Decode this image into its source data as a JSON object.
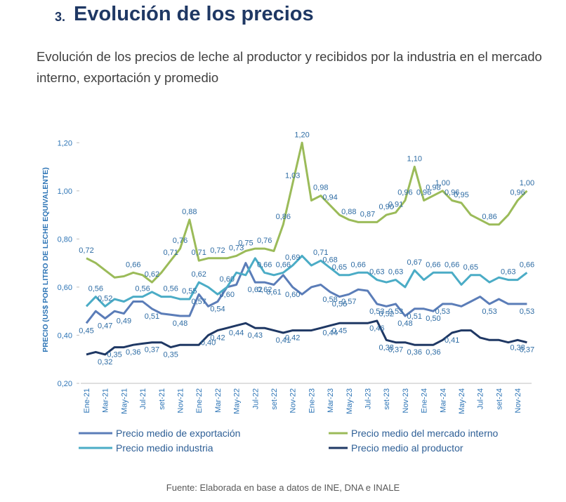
{
  "header": {
    "number": "3.",
    "title": "Evolución de los precios",
    "subtitle": "Evolución de los precios de leche al productor y recibidos por la industria en el mercado interno, exportación y promedio"
  },
  "footer": {
    "source": "Fuente: Elaborada en base a datos de INE, DNA e INALE"
  },
  "chart_data": {
    "type": "line",
    "y_label": "PRECIO (US$ POR LITRO DE LECHE EQUIVALENTE)",
    "categories": [
      "Ene-21",
      null,
      "Mar-21",
      null,
      "May-21",
      null,
      "Jul-21",
      null,
      "set-21",
      null,
      "Nov-21",
      null,
      "Ene-22",
      null,
      "Mar-22",
      null,
      "May-22",
      null,
      "Jul-22",
      null,
      "set-22",
      null,
      "Nov-22",
      null,
      "Ene-23",
      null,
      "Mar-23",
      null,
      "May-23",
      null,
      "Jul-23",
      null,
      "set-23",
      null,
      "Nov-23",
      null,
      "Ene-24",
      null,
      "Mar-24",
      null,
      "May-24",
      null,
      "Jul-24",
      null,
      "set-24",
      null,
      "Nov-24",
      null
    ],
    "ylim": [
      0.2,
      1.3
    ],
    "yticks": [
      {
        "value": 0.2,
        "label": "0,20"
      },
      {
        "value": 0.4,
        "label": "0,40"
      },
      {
        "value": 0.6,
        "label": "0,60"
      },
      {
        "value": 0.8,
        "label": "0,80"
      },
      {
        "value": 1.0,
        "label": "1,00"
      },
      {
        "value": 1.2,
        "label": "1,20"
      }
    ],
    "grid": false,
    "series": [
      {
        "name": "Precio medio de exportación",
        "color": "#5b7db8",
        "values": [
          0.45,
          0.5,
          0.47,
          0.5,
          0.49,
          0.54,
          0.54,
          0.51,
          0.49,
          0.485,
          0.48,
          0.48,
          0.57,
          0.52,
          0.54,
          0.6,
          0.61,
          0.7,
          0.62,
          0.62,
          0.61,
          0.65,
          0.6,
          0.57,
          0.6,
          0.61,
          0.58,
          0.56,
          0.57,
          0.59,
          0.585,
          0.53,
          0.52,
          0.53,
          0.48,
          0.51,
          0.51,
          0.5,
          0.53,
          0.53,
          0.52,
          0.54,
          0.56,
          0.53,
          0.55,
          0.53,
          0.53,
          0.53
        ],
        "value_labels": [
          "0,45",
          null,
          "0,47",
          null,
          "0,49",
          null,
          null,
          "0,51",
          null,
          null,
          "0,48",
          null,
          "0,57",
          null,
          "0,54",
          "0,60",
          null,
          null,
          "0,62",
          "0,62",
          "0,61",
          null,
          "0,60",
          null,
          null,
          null,
          "0,58",
          "0,56",
          "0,57",
          null,
          null,
          "0,53",
          "0,52",
          "0,53",
          "0,48",
          "0,51",
          null,
          "0,50",
          "0,53",
          null,
          null,
          null,
          null,
          "0,53",
          null,
          null,
          null,
          "0,53"
        ]
      },
      {
        "name": "Precio medio industria",
        "color": "#4bacc6",
        "values": [
          0.52,
          0.56,
          0.52,
          0.55,
          0.54,
          0.56,
          0.56,
          0.58,
          0.56,
          0.56,
          0.55,
          0.55,
          0.62,
          0.6,
          0.57,
          0.6,
          0.66,
          0.65,
          0.72,
          0.66,
          0.65,
          0.66,
          0.69,
          0.73,
          0.69,
          0.71,
          0.68,
          0.65,
          0.65,
          0.66,
          0.66,
          0.63,
          0.62,
          0.63,
          0.6,
          0.67,
          0.63,
          0.66,
          0.66,
          0.66,
          0.61,
          0.65,
          0.65,
          0.62,
          0.64,
          0.63,
          0.63,
          0.66
        ],
        "value_labels": [
          null,
          "0,56",
          "0,52",
          null,
          null,
          null,
          "0,56",
          null,
          null,
          "0,56",
          null,
          "0,55",
          "0,62",
          null,
          null,
          "0,60",
          null,
          null,
          null,
          "0,66",
          null,
          "0,66",
          "0,69",
          null,
          null,
          "0,71",
          "0,68",
          "0,65",
          null,
          "0,66",
          null,
          "0,63",
          null,
          "0,63",
          null,
          "0,67",
          null,
          "0,66",
          null,
          "0,66",
          null,
          "0,65",
          null,
          null,
          null,
          "0,63",
          null,
          "0,66"
        ]
      },
      {
        "name": "Precio medio del mercado interno",
        "color": "#9bbb59",
        "values": [
          0.72,
          0.7,
          0.67,
          0.64,
          0.645,
          0.66,
          0.65,
          0.62,
          0.66,
          0.71,
          0.76,
          0.88,
          0.71,
          0.72,
          0.72,
          0.72,
          0.73,
          0.75,
          0.76,
          0.76,
          0.75,
          0.86,
          1.03,
          1.2,
          0.96,
          0.98,
          0.94,
          0.9,
          0.88,
          0.87,
          0.87,
          0.87,
          0.9,
          0.91,
          0.96,
          1.1,
          0.96,
          0.98,
          1.0,
          0.96,
          0.95,
          0.9,
          0.88,
          0.86,
          0.86,
          0.9,
          0.96,
          1.0
        ],
        "value_labels": [
          "0,72",
          null,
          null,
          null,
          null,
          "0,66",
          null,
          "0,62",
          null,
          "0,71",
          "0,76",
          "0,88",
          "0,71",
          null,
          "0,72",
          null,
          "0,73",
          "0,75",
          null,
          "0,76",
          null,
          "0,86",
          "1,03",
          "1,20",
          null,
          "0,98",
          "0,94",
          null,
          "0,88",
          null,
          "0,87",
          null,
          "0,90",
          "0,91",
          "0,96",
          "1,10",
          "0,96",
          "0,98",
          "1,00",
          "0,96",
          "0,95",
          null,
          null,
          "0,86",
          null,
          null,
          "0,96",
          "1,00"
        ]
      },
      {
        "name": "Precio medio al productor",
        "color": "#1f3864",
        "values": [
          0.32,
          0.33,
          0.32,
          0.35,
          0.35,
          0.36,
          0.365,
          0.37,
          0.37,
          0.35,
          0.36,
          0.36,
          0.36,
          0.4,
          0.42,
          0.43,
          0.44,
          0.45,
          0.43,
          0.43,
          0.42,
          0.41,
          0.42,
          0.42,
          0.42,
          0.43,
          0.44,
          0.45,
          0.45,
          0.45,
          0.45,
          0.46,
          0.38,
          0.37,
          0.37,
          0.36,
          0.36,
          0.36,
          0.38,
          0.41,
          0.42,
          0.42,
          0.39,
          0.38,
          0.38,
          0.37,
          0.38,
          0.37
        ],
        "value_labels": [
          null,
          null,
          "0,32",
          "0,35",
          null,
          "0,36",
          null,
          "0,37",
          null,
          "0,35",
          null,
          null,
          null,
          "0,40",
          "0,42",
          null,
          "0,44",
          null,
          "0,43",
          null,
          null,
          "0,41",
          "0,42",
          null,
          null,
          null,
          "0,44",
          "0,45",
          null,
          null,
          null,
          "0,46",
          "0,38",
          "0,37",
          null,
          "0,36",
          null,
          "0,36",
          null,
          "0,41",
          null,
          null,
          null,
          null,
          null,
          null,
          "0,38",
          "0,37"
        ]
      }
    ]
  }
}
